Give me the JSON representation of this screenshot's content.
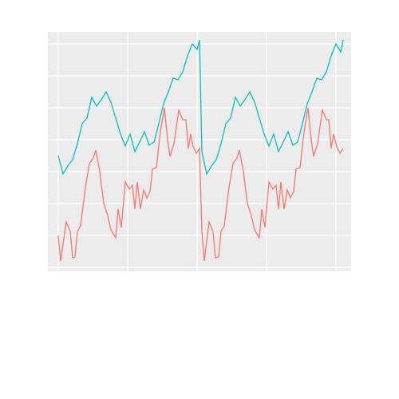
{
  "chart_data": {
    "type": "line",
    "xlim": [
      -13,
      367
    ],
    "xticks": [
      0,
      87,
      174,
      261,
      348
    ],
    "ylim": [
      -5,
      295
    ],
    "yticks": [
      0,
      40,
      80,
      120,
      160,
      200,
      240,
      280
    ],
    "grid": true,
    "series": [
      {
        "color": "#00bfc4",
        "x": [
          0,
          6,
          12,
          18,
          24,
          30,
          36,
          42,
          48,
          54,
          60,
          66,
          72,
          78,
          84,
          90,
          96,
          102,
          108,
          114,
          120,
          126,
          132,
          138,
          144,
          150,
          156,
          162,
          168,
          174,
          177,
          180,
          186,
          192,
          198,
          204,
          210,
          216,
          222,
          228,
          234,
          240,
          246,
          252,
          258,
          264,
          270,
          276,
          282,
          288,
          294,
          300,
          306,
          312,
          318,
          324,
          330,
          336,
          342,
          348,
          354,
          357
        ],
        "values": [
          140,
          117,
          127,
          135,
          155,
          180,
          187,
          213,
          202,
          210,
          220,
          207,
          187,
          167,
          152,
          167,
          145,
          157,
          170,
          153,
          157,
          180,
          205,
          220,
          237,
          235,
          245,
          265,
          280,
          273,
          285,
          145,
          117,
          127,
          135,
          155,
          180,
          187,
          213,
          202,
          210,
          220,
          207,
          187,
          167,
          152,
          167,
          145,
          157,
          170,
          153,
          157,
          180,
          205,
          220,
          237,
          235,
          245,
          265,
          280,
          270,
          285
        ]
      },
      {
        "color": "#f8766d",
        "x": [
          0,
          3,
          10,
          15,
          18,
          21,
          24,
          28,
          34,
          39,
          44,
          47,
          52,
          57,
          62,
          66,
          72,
          75,
          79,
          84,
          89,
          93,
          96,
          99,
          103,
          107,
          111,
          115,
          118,
          123,
          128,
          133,
          137,
          140,
          145,
          151,
          156,
          160,
          163,
          166,
          169,
          173,
          177,
          180,
          183,
          189,
          194,
          197,
          201,
          204,
          208,
          214,
          219,
          224,
          227,
          232,
          237,
          242,
          246,
          252,
          255,
          259,
          264,
          269,
          273,
          276,
          279,
          283,
          287,
          291,
          295,
          298,
          303,
          308,
          313,
          317,
          320,
          325,
          331,
          336,
          339,
          342,
          345,
          349,
          353,
          357
        ],
        "values": [
          40,
          8,
          57,
          45,
          12,
          13,
          45,
          52,
          100,
          130,
          137,
          147,
          120,
          80,
          65,
          47,
          37,
          73,
          50,
          107,
          98,
          103,
          73,
          107,
          73,
          97,
          87,
          95,
          123,
          125,
          170,
          200,
          160,
          139,
          155,
          197,
          185,
          185,
          149,
          167,
          151,
          143,
          149,
          45,
          8,
          57,
          45,
          12,
          13,
          45,
          52,
          100,
          130,
          137,
          147,
          120,
          80,
          65,
          47,
          37,
          73,
          50,
          107,
          98,
          103,
          73,
          107,
          73,
          97,
          87,
          95,
          123,
          125,
          170,
          200,
          160,
          139,
          155,
          197,
          185,
          185,
          149,
          167,
          151,
          143,
          149
        ]
      }
    ]
  }
}
